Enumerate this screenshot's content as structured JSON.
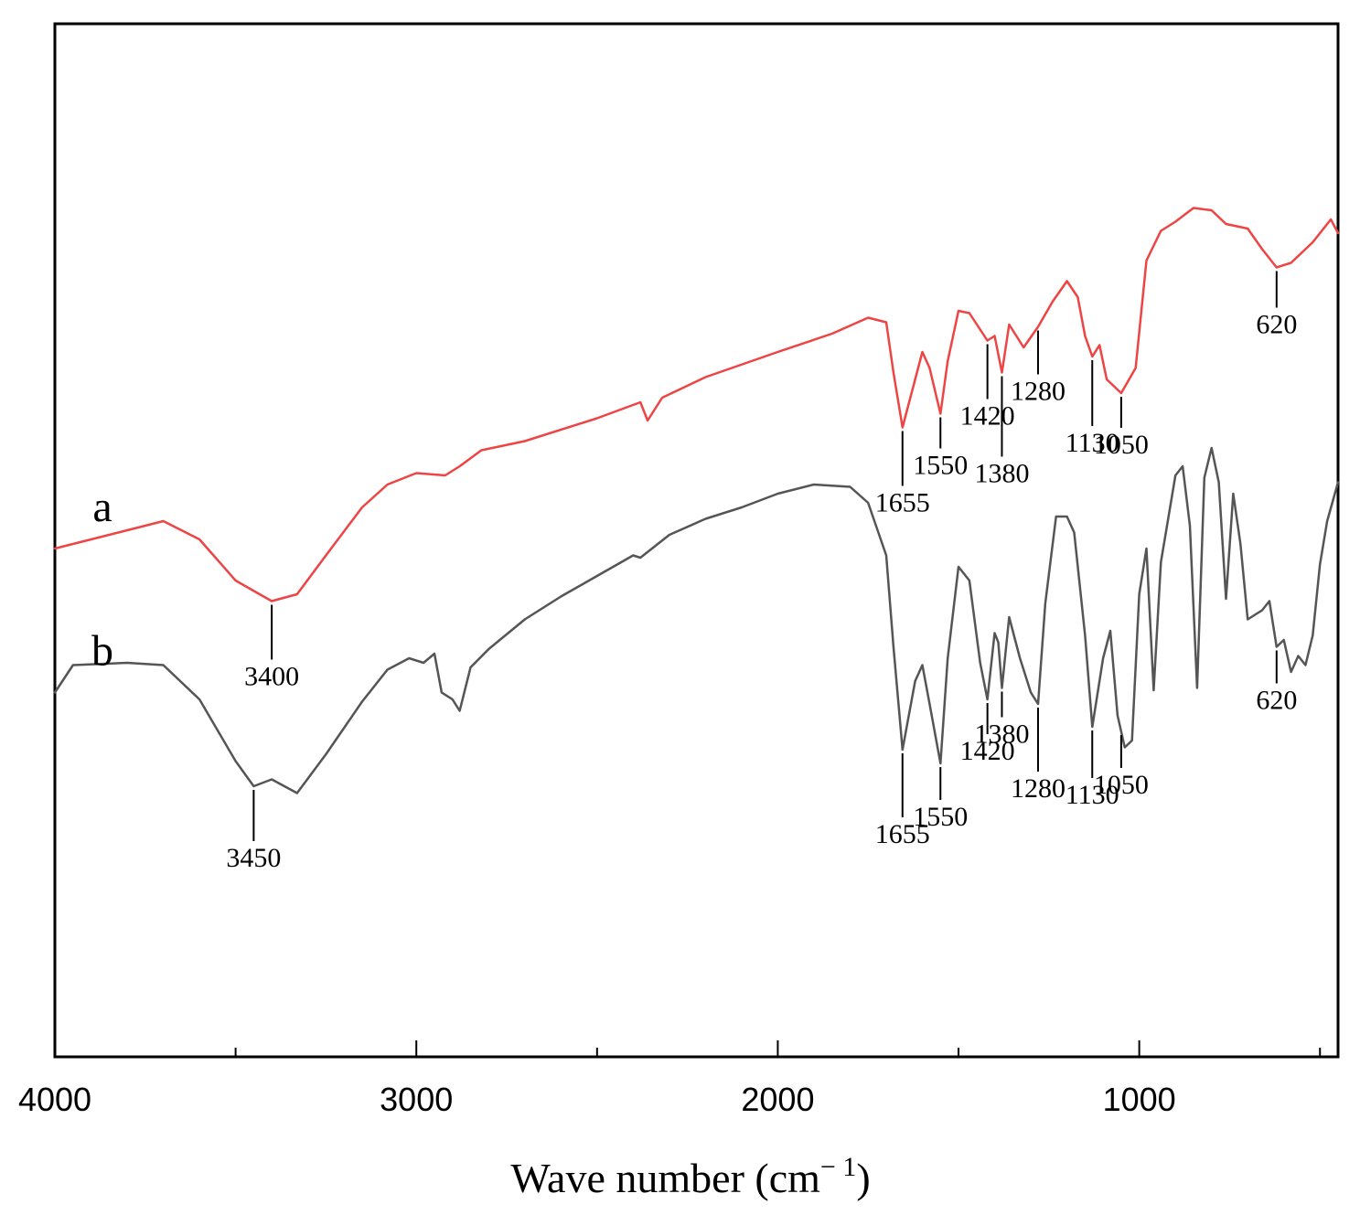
{
  "chart_data": {
    "type": "line",
    "title": "",
    "xlabel": "Wave number (cm",
    "xlabel_sup": "− 1",
    "xlabel_close": ")",
    "ylabel": "",
    "xlim": [
      4000,
      450
    ],
    "x_ticks": [
      4000,
      3000,
      2000,
      1000
    ],
    "x_tick_labels": [
      "4000",
      "3000",
      "2000",
      "1000"
    ],
    "y_axis": "transmittance (arbitrary units, no ticks)",
    "series": [
      {
        "name": "a",
        "color": "#ee4444",
        "points": [
          [
            4000,
            -7.2
          ],
          [
            3700,
            -6.0
          ],
          [
            3600,
            -6.8
          ],
          [
            3500,
            -8.6
          ],
          [
            3400,
            -9.5
          ],
          [
            3330,
            -9.2
          ],
          [
            3250,
            -7.5
          ],
          [
            3150,
            -5.4
          ],
          [
            3080,
            -4.4
          ],
          [
            3000,
            -3.9
          ],
          [
            2920,
            -4.0
          ],
          [
            2880,
            -3.6
          ],
          [
            2820,
            -2.9
          ],
          [
            2700,
            -2.5
          ],
          [
            2500,
            -1.5
          ],
          [
            2380,
            -0.8
          ],
          [
            2360,
            -1.6
          ],
          [
            2320,
            -0.6
          ],
          [
            2200,
            0.3
          ],
          [
            2000,
            1.4
          ],
          [
            1850,
            2.2
          ],
          [
            1750,
            2.9
          ],
          [
            1700,
            2.7
          ],
          [
            1680,
            0.5
          ],
          [
            1655,
            -1.9
          ],
          [
            1620,
            0.2
          ],
          [
            1600,
            1.4
          ],
          [
            1580,
            0.7
          ],
          [
            1550,
            -1.3
          ],
          [
            1530,
            1.0
          ],
          [
            1500,
            3.2
          ],
          [
            1470,
            3.1
          ],
          [
            1420,
            1.9
          ],
          [
            1400,
            2.1
          ],
          [
            1380,
            0.5
          ],
          [
            1360,
            2.6
          ],
          [
            1320,
            1.6
          ],
          [
            1280,
            2.5
          ],
          [
            1240,
            3.6
          ],
          [
            1200,
            4.5
          ],
          [
            1170,
            3.8
          ],
          [
            1150,
            2.1
          ],
          [
            1130,
            1.2
          ],
          [
            1110,
            1.7
          ],
          [
            1090,
            0.2
          ],
          [
            1050,
            -0.4
          ],
          [
            1010,
            0.7
          ],
          [
            980,
            5.4
          ],
          [
            940,
            6.7
          ],
          [
            900,
            7.1
          ],
          [
            850,
            7.7
          ],
          [
            800,
            7.6
          ],
          [
            760,
            7.0
          ],
          [
            700,
            6.8
          ],
          [
            660,
            5.9
          ],
          [
            620,
            5.1
          ],
          [
            580,
            5.3
          ],
          [
            520,
            6.2
          ],
          [
            470,
            7.2
          ],
          [
            450,
            6.6
          ]
        ],
        "annotations": [
          {
            "label": "3400",
            "x": 3400
          },
          {
            "label": "1655",
            "x": 1655
          },
          {
            "label": "1550",
            "x": 1550
          },
          {
            "label": "1420",
            "x": 1420
          },
          {
            "label": "1380",
            "x": 1380
          },
          {
            "label": "1280",
            "x": 1280
          },
          {
            "label": "1130",
            "x": 1130
          },
          {
            "label": "1050",
            "x": 1050
          },
          {
            "label": "620",
            "x": 620
          }
        ]
      },
      {
        "name": "b",
        "color": "#555555",
        "points": [
          [
            4000,
            -13.5
          ],
          [
            3950,
            -12.3
          ],
          [
            3800,
            -12.2
          ],
          [
            3700,
            -12.3
          ],
          [
            3600,
            -13.8
          ],
          [
            3500,
            -16.5
          ],
          [
            3450,
            -17.6
          ],
          [
            3400,
            -17.3
          ],
          [
            3330,
            -17.9
          ],
          [
            3250,
            -16.2
          ],
          [
            3150,
            -13.9
          ],
          [
            3080,
            -12.5
          ],
          [
            3020,
            -12.0
          ],
          [
            2980,
            -12.2
          ],
          [
            2950,
            -11.8
          ],
          [
            2930,
            -13.5
          ],
          [
            2900,
            -13.8
          ],
          [
            2880,
            -14.3
          ],
          [
            2850,
            -12.4
          ],
          [
            2800,
            -11.6
          ],
          [
            2700,
            -10.3
          ],
          [
            2600,
            -9.3
          ],
          [
            2500,
            -8.4
          ],
          [
            2400,
            -7.5
          ],
          [
            2380,
            -7.6
          ],
          [
            2300,
            -6.6
          ],
          [
            2200,
            -5.9
          ],
          [
            2100,
            -5.4
          ],
          [
            2000,
            -4.8
          ],
          [
            1900,
            -4.4
          ],
          [
            1800,
            -4.5
          ],
          [
            1750,
            -5.2
          ],
          [
            1700,
            -7.5
          ],
          [
            1680,
            -11.5
          ],
          [
            1655,
            -16.0
          ],
          [
            1620,
            -13.0
          ],
          [
            1600,
            -12.3
          ],
          [
            1580,
            -14.0
          ],
          [
            1550,
            -16.6
          ],
          [
            1530,
            -12.0
          ],
          [
            1500,
            -8.0
          ],
          [
            1470,
            -8.6
          ],
          [
            1440,
            -12.2
          ],
          [
            1420,
            -13.8
          ],
          [
            1400,
            -10.9
          ],
          [
            1390,
            -11.3
          ],
          [
            1380,
            -13.3
          ],
          [
            1360,
            -10.2
          ],
          [
            1330,
            -12.0
          ],
          [
            1300,
            -13.5
          ],
          [
            1280,
            -14.0
          ],
          [
            1260,
            -9.6
          ],
          [
            1230,
            -5.8
          ],
          [
            1200,
            -5.8
          ],
          [
            1180,
            -6.5
          ],
          [
            1150,
            -11.0
          ],
          [
            1130,
            -15.0
          ],
          [
            1100,
            -12.0
          ],
          [
            1080,
            -10.8
          ],
          [
            1060,
            -14.5
          ],
          [
            1040,
            -15.9
          ],
          [
            1020,
            -15.6
          ],
          [
            1000,
            -9.2
          ],
          [
            980,
            -7.2
          ],
          [
            960,
            -13.4
          ],
          [
            940,
            -7.8
          ],
          [
            900,
            -4.0
          ],
          [
            880,
            -3.6
          ],
          [
            860,
            -6.2
          ],
          [
            840,
            -13.3
          ],
          [
            820,
            -4.1
          ],
          [
            800,
            -2.8
          ],
          [
            780,
            -4.3
          ],
          [
            760,
            -9.4
          ],
          [
            740,
            -4.8
          ],
          [
            720,
            -7.0
          ],
          [
            700,
            -10.3
          ],
          [
            660,
            -9.9
          ],
          [
            640,
            -9.5
          ],
          [
            620,
            -11.5
          ],
          [
            600,
            -11.2
          ],
          [
            580,
            -12.6
          ],
          [
            560,
            -11.9
          ],
          [
            540,
            -12.3
          ],
          [
            520,
            -11.0
          ],
          [
            500,
            -7.9
          ],
          [
            480,
            -6.0
          ],
          [
            450,
            -4.3
          ]
        ],
        "annotations": [
          {
            "label": "3450",
            "x": 3450
          },
          {
            "label": "1655",
            "x": 1655
          },
          {
            "label": "1550",
            "x": 1550
          },
          {
            "label": "1420",
            "x": 1420
          },
          {
            "label": "1380",
            "x": 1380
          },
          {
            "label": "1280",
            "x": 1280
          },
          {
            "label": "1130",
            "x": 1130
          },
          {
            "label": "1050",
            "x": 1050
          },
          {
            "label": "620",
            "x": 620
          }
        ]
      }
    ],
    "grid": false,
    "legend": "inline series labels on the left"
  }
}
